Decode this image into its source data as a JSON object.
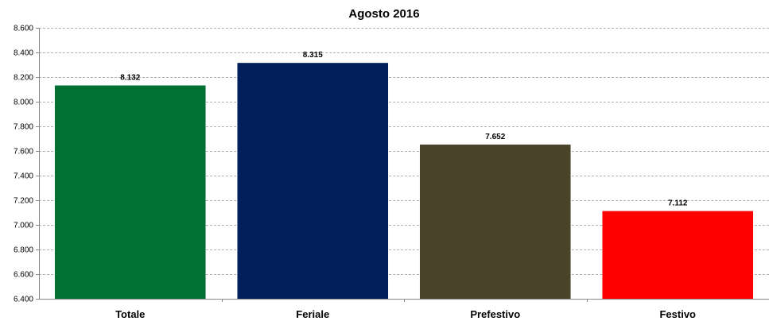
{
  "chart_data": {
    "type": "bar",
    "title": "Agosto 2016",
    "xlabel": "",
    "ylabel": "",
    "categories": [
      "Totale",
      "Feriale",
      "Prefestivo",
      "Festivo"
    ],
    "values": [
      8132,
      8315,
      7652,
      7112
    ],
    "value_labels": [
      "8.132",
      "8.315",
      "7.652",
      "7.112"
    ],
    "colors": [
      "#007033",
      "#001F5B",
      "#4A452A",
      "#FF0000"
    ],
    "ylim": [
      6400,
      8600
    ],
    "yticks": [
      6400,
      6600,
      6800,
      7000,
      7200,
      7400,
      7600,
      7800,
      8000,
      8200,
      8400,
      8600
    ],
    "ytick_labels": [
      "6.400",
      "6.600",
      "6.800",
      "7.000",
      "7.200",
      "7.400",
      "7.600",
      "7.800",
      "8.000",
      "8.200",
      "8.400",
      "8.600"
    ],
    "grid": true,
    "legend": "none"
  }
}
